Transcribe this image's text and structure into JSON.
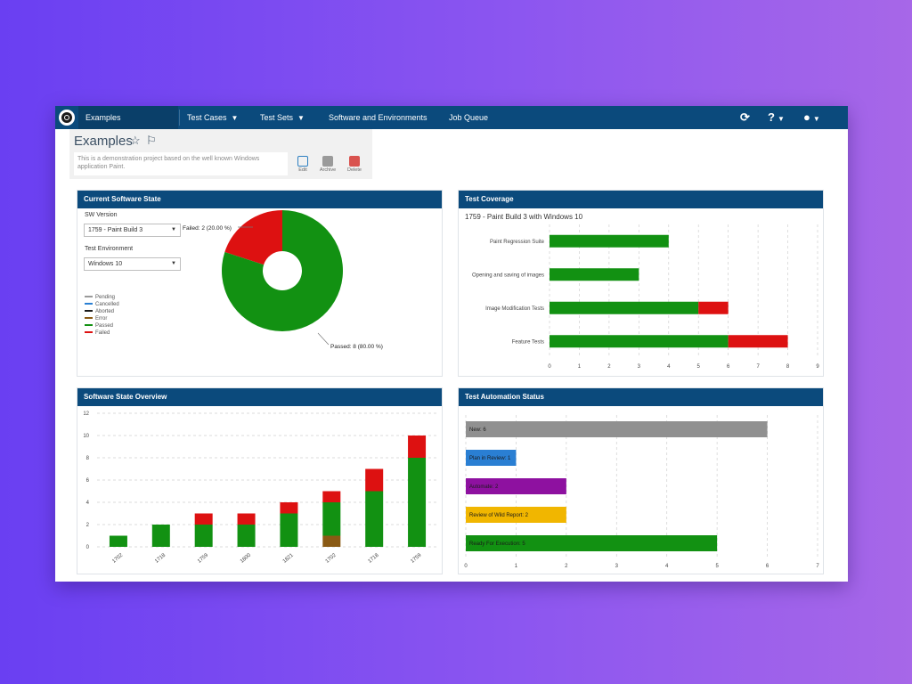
{
  "nav": {
    "project": "Examples",
    "items": [
      {
        "label": "Test Cases",
        "caret": "▼"
      },
      {
        "label": "Test Sets",
        "caret": "▼"
      },
      {
        "label": "Software and Environments",
        "caret": ""
      },
      {
        "label": "Job Queue",
        "caret": ""
      }
    ],
    "refresh_icon": "⟳",
    "help_icon": "?",
    "user_icon": "●",
    "caret": "▼"
  },
  "project": {
    "title": "Examples",
    "description": "This is a demonstration project based on the well known Windows application Paint.",
    "actions": [
      {
        "label": "Edit",
        "icon": "edit-icon",
        "color": "#2d7fc1"
      },
      {
        "label": "Archive",
        "icon": "archive-icon",
        "color": "#888888"
      },
      {
        "label": "Delete",
        "icon": "delete-icon",
        "color": "#d9534f"
      }
    ]
  },
  "colors": {
    "header": "#0b4a7c",
    "passed": "#129112",
    "failed": "#dd1111",
    "error": "#8a5a14",
    "aborted": "#1b1b1b",
    "cancelled": "#2a7fd3",
    "pending": "#9a9a9a",
    "gray": "#909090",
    "purple": "#8e11a0",
    "yellow": "#f1b600"
  },
  "panels": {
    "current_state": {
      "title": "Current Software State",
      "sw_version_label": "SW Version",
      "sw_version_value": "1759 - Paint Build 3",
      "env_label": "Test Environment",
      "env_value": "Windows 10",
      "caret": "▼",
      "legend": [
        {
          "label": "Pending",
          "color": "#9a9a9a"
        },
        {
          "label": "Cancelled",
          "color": "#2a7fd3"
        },
        {
          "label": "Aborted",
          "color": "#1b1b1b"
        },
        {
          "label": "Error",
          "color": "#8a5a14"
        },
        {
          "label": "Passed",
          "color": "#129112"
        },
        {
          "label": "Failed",
          "color": "#dd1111"
        }
      ],
      "failed_label": "Failed: 2 (20.00 %)",
      "passed_label": "Passed: 8 (80.00 %)"
    },
    "coverage": {
      "title": "Test Coverage",
      "subtitle": "1759 - Paint Build 3 with Windows 10"
    },
    "overview": {
      "title": "Software State Overview"
    },
    "automation": {
      "title": "Test Automation Status"
    }
  },
  "chart_data": [
    {
      "type": "pie",
      "title": "Current Software State",
      "labels": [
        "Failed",
        "Passed"
      ],
      "values": [
        2,
        8
      ],
      "percents": [
        20.0,
        80.0
      ]
    },
    {
      "type": "bar",
      "title": "Test Coverage",
      "orientation": "horizontal",
      "categories": [
        "Paint Regression Suite",
        "Opening and saving of images",
        "Image Modification Tests",
        "Feature Tests"
      ],
      "series": [
        {
          "name": "Passed",
          "values": [
            4,
            3,
            5,
            6
          ]
        },
        {
          "name": "Failed",
          "values": [
            0,
            0,
            1,
            2
          ]
        }
      ],
      "xlim": [
        0,
        9
      ],
      "xticks": [
        "0",
        "1",
        "2",
        "3",
        "4",
        "5",
        "6",
        "7",
        "8",
        "9"
      ],
      "grid": true
    },
    {
      "type": "bar",
      "title": "Software State Overview",
      "stacked": true,
      "categories": [
        "1702",
        "1718",
        "1759",
        "1800",
        "1821",
        "1702",
        "1718",
        "1759"
      ],
      "series": [
        {
          "name": "Error",
          "values": [
            0,
            0,
            0,
            0,
            0,
            1,
            0,
            0
          ]
        },
        {
          "name": "Passed",
          "values": [
            1,
            2,
            2,
            2,
            3,
            3,
            5,
            8
          ]
        },
        {
          "name": "Failed",
          "values": [
            0,
            0,
            1,
            1,
            1,
            1,
            2,
            2
          ]
        }
      ],
      "ylim": [
        0,
        12
      ],
      "yticks": [
        "0",
        "2",
        "4",
        "6",
        "8",
        "10",
        "12"
      ],
      "grid": true
    },
    {
      "type": "bar",
      "title": "Test Automation Status",
      "orientation": "horizontal",
      "categories": [
        "New: 6",
        "Plan in Review: 1",
        "Automate: 2",
        "Review of Wild Report: 2",
        "Ready For Execution: 5"
      ],
      "values": [
        6,
        1,
        2,
        2,
        5
      ],
      "xlim": [
        0,
        7
      ],
      "xticks": [
        "0",
        "1",
        "2",
        "3",
        "4",
        "5",
        "6",
        "7"
      ],
      "grid": true
    }
  ]
}
